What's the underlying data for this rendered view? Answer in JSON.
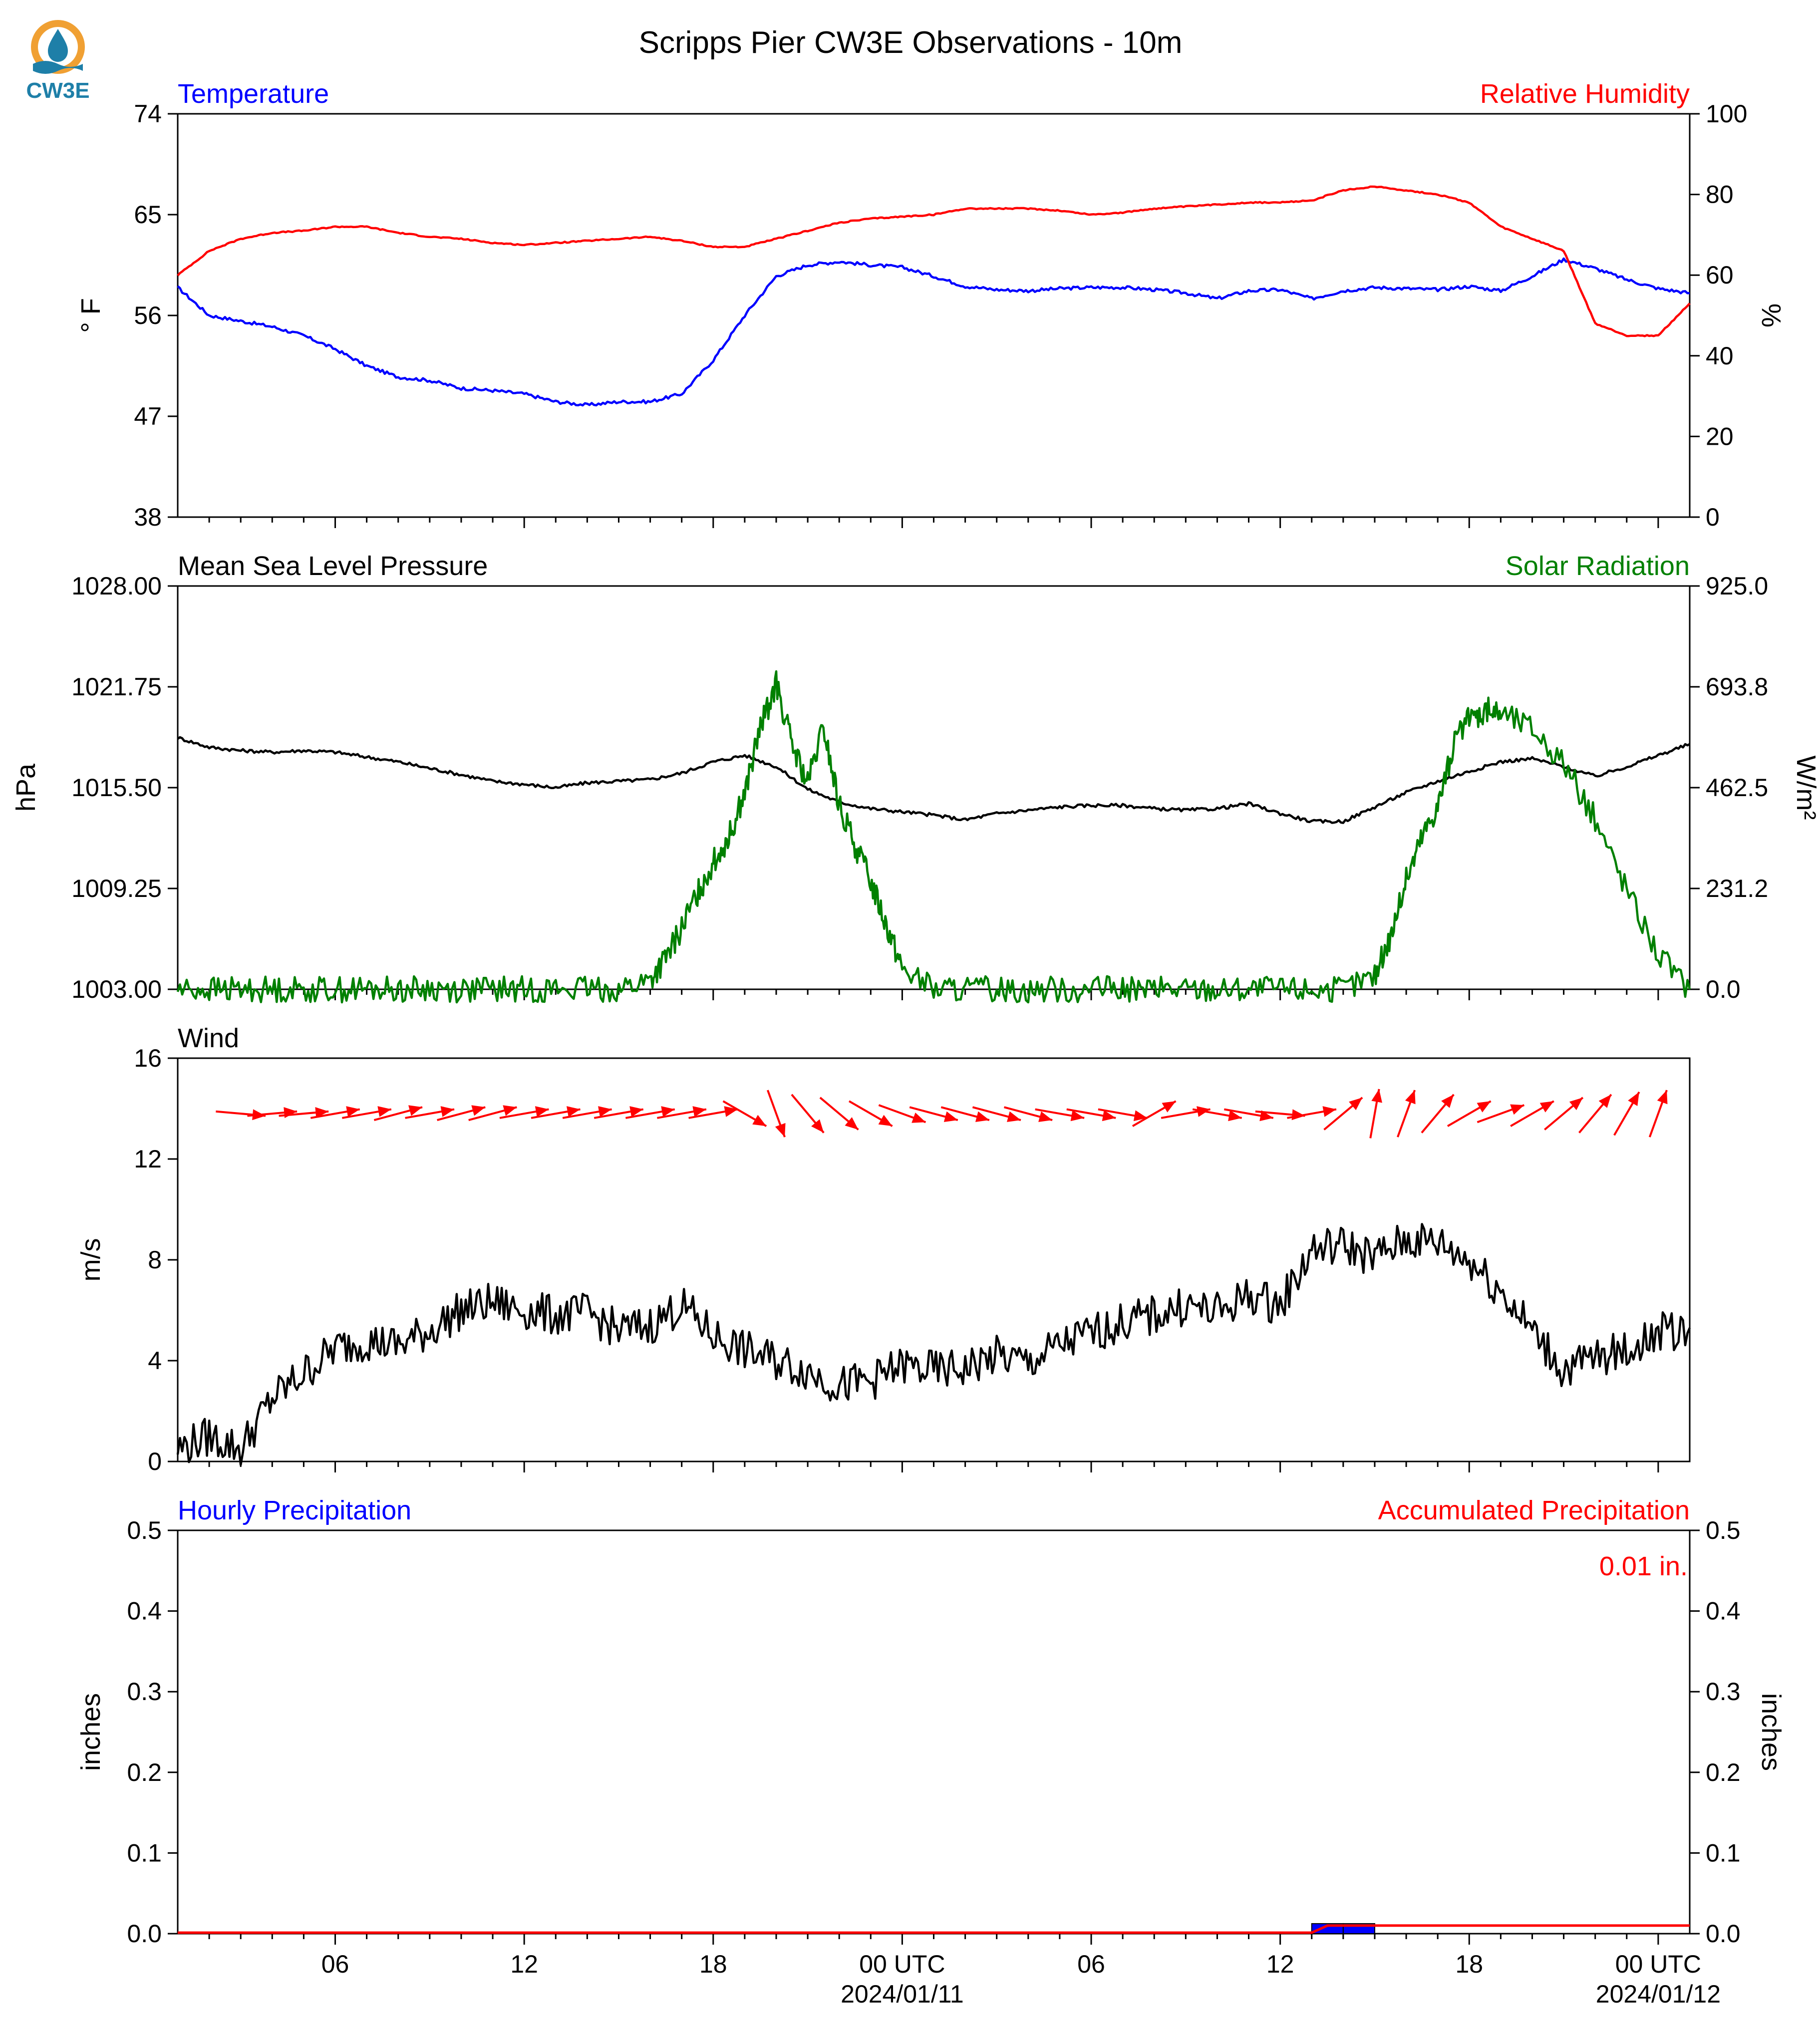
{
  "page_title": "Scripps Pier CW3E Observations - 10m",
  "logo": {
    "text": "CW3E",
    "icon": "water-drop-sun-icon",
    "color_orange": "#f0a033",
    "color_blue": "#1e7fa8"
  },
  "colors": {
    "blue": "#0000ff",
    "red": "#ff0000",
    "green": "#008000",
    "black": "#000000"
  },
  "x_axis": {
    "start": "2024-01-10 01:00 UTC",
    "end": "2024-01-12 01:00 UTC",
    "tick_labels": [
      "06",
      "12",
      "18",
      "00 UTC",
      "06",
      "12",
      "18",
      "00 UTC"
    ],
    "date_labels": [
      "2024/01/11",
      "2024/01/12"
    ]
  },
  "chart_data": [
    {
      "type": "line",
      "left_title": "Temperature",
      "right_title": "Relative Humidity",
      "ylabel_left": "° F",
      "ylabel_right": "%",
      "ylim_left": [
        38,
        74
      ],
      "ylim_right": [
        0,
        100
      ],
      "yticks_left": [
        "38",
        "47",
        "56",
        "65",
        "74"
      ],
      "yticks_right": [
        "0",
        "20",
        "40",
        "60",
        "80",
        "100"
      ],
      "series": [
        {
          "name": "Temperature",
          "axis": "left",
          "color": "#0000ff",
          "x_hours": [
            0,
            1,
            2,
            3,
            4,
            5,
            6,
            7,
            8,
            9,
            10,
            11,
            12,
            13,
            14,
            15,
            16,
            17,
            18,
            19,
            20,
            21,
            22,
            23,
            24,
            25,
            26,
            27,
            28,
            29,
            30,
            31,
            32,
            33,
            34,
            35,
            36,
            37,
            38,
            39,
            40,
            41,
            42,
            43,
            44,
            45,
            46,
            47,
            48
          ],
          "values": [
            58.5,
            56,
            55.5,
            55,
            54.2,
            53,
            51.5,
            50.5,
            50.2,
            49.5,
            49.3,
            49,
            48.3,
            48,
            48.3,
            48.3,
            49,
            52,
            56,
            59.5,
            60.5,
            60.8,
            60.5,
            60.3,
            59.5,
            58.6,
            58.3,
            58.2,
            58.4,
            58.5,
            58.5,
            58.3,
            58,
            57.5,
            58.2,
            58.3,
            57.5,
            58.2,
            58.5,
            58.4,
            58.3,
            58.6,
            58.2,
            59.5,
            61,
            60.2,
            59.2,
            58.4,
            58
          ]
        },
        {
          "name": "Relative Humidity",
          "axis": "right",
          "color": "#ff0000",
          "x_hours": [
            0,
            1,
            2,
            3,
            4,
            5,
            6,
            7,
            8,
            9,
            10,
            11,
            12,
            13,
            14,
            15,
            16,
            17,
            18,
            19,
            20,
            21,
            22,
            23,
            24,
            25,
            26,
            27,
            28,
            29,
            30,
            31,
            32,
            33,
            34,
            35,
            36,
            37,
            38,
            39,
            40,
            41,
            42,
            43,
            44,
            45,
            46,
            47,
            48
          ],
          "values": [
            60,
            66,
            69,
            70.5,
            71,
            72,
            72,
            70.5,
            69.5,
            69,
            68,
            67.5,
            68,
            68.5,
            69,
            69.5,
            68.5,
            67,
            67,
            69,
            71,
            73,
            74,
            74.5,
            75,
            76.5,
            76.5,
            76.5,
            76,
            75,
            75.5,
            76.5,
            77,
            77.5,
            78,
            78,
            78.5,
            81,
            82,
            81,
            80,
            78,
            72,
            69,
            66,
            48,
            45,
            45,
            53
          ]
        }
      ]
    },
    {
      "type": "line",
      "left_title": "Mean Sea Level Pressure",
      "right_title": "Solar Radiation",
      "ylabel_left": "hPa",
      "ylabel_right": "W/m²",
      "ylim_left": [
        1003,
        1028
      ],
      "ylim_right": [
        0,
        925
      ],
      "yticks_left": [
        "1003.00",
        "1009.25",
        "1015.50",
        "1021.75",
        "1028.00"
      ],
      "yticks_right": [
        "0.0",
        "231.2",
        "462.5",
        "693.8",
        "925.0"
      ],
      "series": [
        {
          "name": "Mean Sea Level Pressure",
          "axis": "left",
          "color": "#000000",
          "x_hours": [
            0,
            1,
            2,
            3,
            4,
            5,
            6,
            7,
            8,
            9,
            10,
            11,
            12,
            13,
            14,
            15,
            16,
            17,
            18,
            19,
            20,
            21,
            22,
            23,
            24,
            25,
            26,
            27,
            28,
            29,
            30,
            31,
            32,
            33,
            34,
            35,
            36,
            37,
            38,
            39,
            40,
            41,
            42,
            43,
            44,
            45,
            46,
            47,
            48
          ],
          "values": [
            1018.6,
            1018,
            1017.8,
            1017.7,
            1017.8,
            1017.7,
            1017.4,
            1017.1,
            1016.7,
            1016.3,
            1015.9,
            1015.7,
            1015.5,
            1015.8,
            1015.9,
            1016,
            1016.4,
            1017.1,
            1017.5,
            1016.8,
            1015.4,
            1014.6,
            1014.2,
            1014,
            1013.8,
            1013.5,
            1013.9,
            1014.1,
            1014.3,
            1014.4,
            1014.4,
            1014.2,
            1014.1,
            1014.2,
            1014.5,
            1013.9,
            1013.4,
            1013.4,
            1014.3,
            1015.2,
            1015.9,
            1016.5,
            1017.1,
            1017.3,
            1016.8,
            1016.2,
            1016.8,
            1017.5,
            1018.2
          ]
        },
        {
          "name": "Solar Radiation",
          "axis": "right",
          "color": "#008000",
          "x_hours": [
            0,
            1,
            2,
            3,
            4,
            5,
            6,
            7,
            8,
            9,
            10,
            11,
            12,
            13,
            14,
            15,
            15.5,
            16,
            16.5,
            17,
            17.5,
            18,
            18.5,
            19,
            19.5,
            20,
            20.5,
            21,
            21.5,
            22,
            22.5,
            23,
            24,
            25,
            26,
            27,
            28,
            29,
            30,
            31,
            32,
            33,
            34,
            35,
            36,
            37,
            38,
            38.5,
            39,
            39.5,
            40,
            40.5,
            41,
            41.5,
            42,
            43,
            44,
            45,
            46,
            47,
            48
          ],
          "values": [
            0,
            0,
            0,
            0,
            0,
            0,
            0,
            0,
            0,
            0,
            0,
            0,
            0,
            0,
            0,
            20,
            70,
            140,
            220,
            290,
            350,
            450,
            600,
            700,
            560,
            470,
            600,
            420,
            330,
            250,
            150,
            50,
            0,
            0,
            0,
            0,
            0,
            0,
            0,
            0,
            0,
            0,
            0,
            0,
            0,
            0,
            30,
            120,
            250,
            350,
            420,
            560,
            620,
            640,
            635,
            600,
            520,
            390,
            230,
            80,
            0
          ]
        }
      ]
    },
    {
      "type": "line",
      "left_title": "Wind",
      "ylabel_left": "m/s",
      "ylim_left": [
        0,
        16
      ],
      "yticks_left": [
        "0",
        "4",
        "8",
        "12",
        "16"
      ],
      "series": [
        {
          "name": "Wind",
          "axis": "left",
          "color": "#000000",
          "x_hours": [
            0,
            1,
            2,
            3,
            4,
            5,
            6,
            7,
            8,
            9,
            10,
            11,
            12,
            13,
            14,
            15,
            16,
            17,
            18,
            19,
            20,
            21,
            22,
            23,
            24,
            25,
            26,
            27,
            28,
            29,
            30,
            31,
            32,
            33,
            34,
            35,
            36,
            37,
            38,
            39,
            40,
            41,
            42,
            43,
            44,
            45,
            46,
            47,
            48
          ],
          "values": [
            0.5,
            1,
            0.5,
            2.5,
            3.5,
            4.5,
            4.8,
            4.6,
            5.2,
            6,
            6.3,
            6,
            5.8,
            5.9,
            5.2,
            5.4,
            6.2,
            5,
            4.4,
            4,
            3.6,
            3,
            3.2,
            3.8,
            3.6,
            3.7,
            4.2,
            3.9,
            4.6,
            5.1,
            5.5,
            5.8,
            6.2,
            5.9,
            6.6,
            6.2,
            8.4,
            8.6,
            8.1,
            8.8,
            8.7,
            8,
            6.8,
            5.2,
            3.6,
            4.1,
            4.4,
            5.1,
            5.3
          ]
        }
      ],
      "barbs": {
        "note": "wind direction arrows",
        "x_hours": [
          2,
          3,
          4,
          5,
          6,
          7,
          8,
          9,
          10,
          11,
          12,
          13,
          14,
          15,
          16,
          17,
          18,
          19,
          20,
          21,
          22,
          23,
          24,
          25,
          26,
          27,
          28,
          29,
          30,
          31,
          32,
          33,
          34,
          35,
          36,
          37,
          38,
          39,
          40,
          41,
          42,
          43,
          44,
          45,
          46,
          47
        ],
        "direction_deg_to": [
          95,
          85,
          85,
          80,
          80,
          75,
          80,
          75,
          75,
          80,
          80,
          80,
          80,
          80,
          80,
          80,
          120,
          160,
          140,
          130,
          120,
          110,
          105,
          105,
          105,
          105,
          100,
          100,
          100,
          60,
          80,
          100,
          100,
          95,
          80,
          50,
          10,
          20,
          40,
          60,
          70,
          60,
          50,
          40,
          30,
          20
        ],
        "y_value": 13.8
      }
    },
    {
      "type": "bar",
      "left_title": "Hourly Precipitation",
      "right_title": "Accumulated Precipitation",
      "ylabel_left": "inches",
      "ylabel_right": "inches",
      "ylim_left": [
        0,
        0.5
      ],
      "ylim_right": [
        0,
        0.5
      ],
      "yticks_left": [
        "0.0",
        "0.1",
        "0.2",
        "0.3",
        "0.4",
        "0.5"
      ],
      "yticks_right": [
        "0.0",
        "0.1",
        "0.2",
        "0.3",
        "0.4",
        "0.5"
      ],
      "accumulated_label": "0.01 in.",
      "series": [
        {
          "name": "Hourly Precipitation",
          "type": "bar",
          "color": "#0000ff",
          "x_hours": [
            36,
            37
          ],
          "values": [
            0.005,
            0.005
          ]
        },
        {
          "name": "Accumulated Precipitation",
          "type": "line",
          "color": "#ff0000",
          "x_hours": [
            0,
            36,
            36.5,
            48
          ],
          "values": [
            0,
            0,
            0.01,
            0.01
          ]
        }
      ]
    }
  ]
}
